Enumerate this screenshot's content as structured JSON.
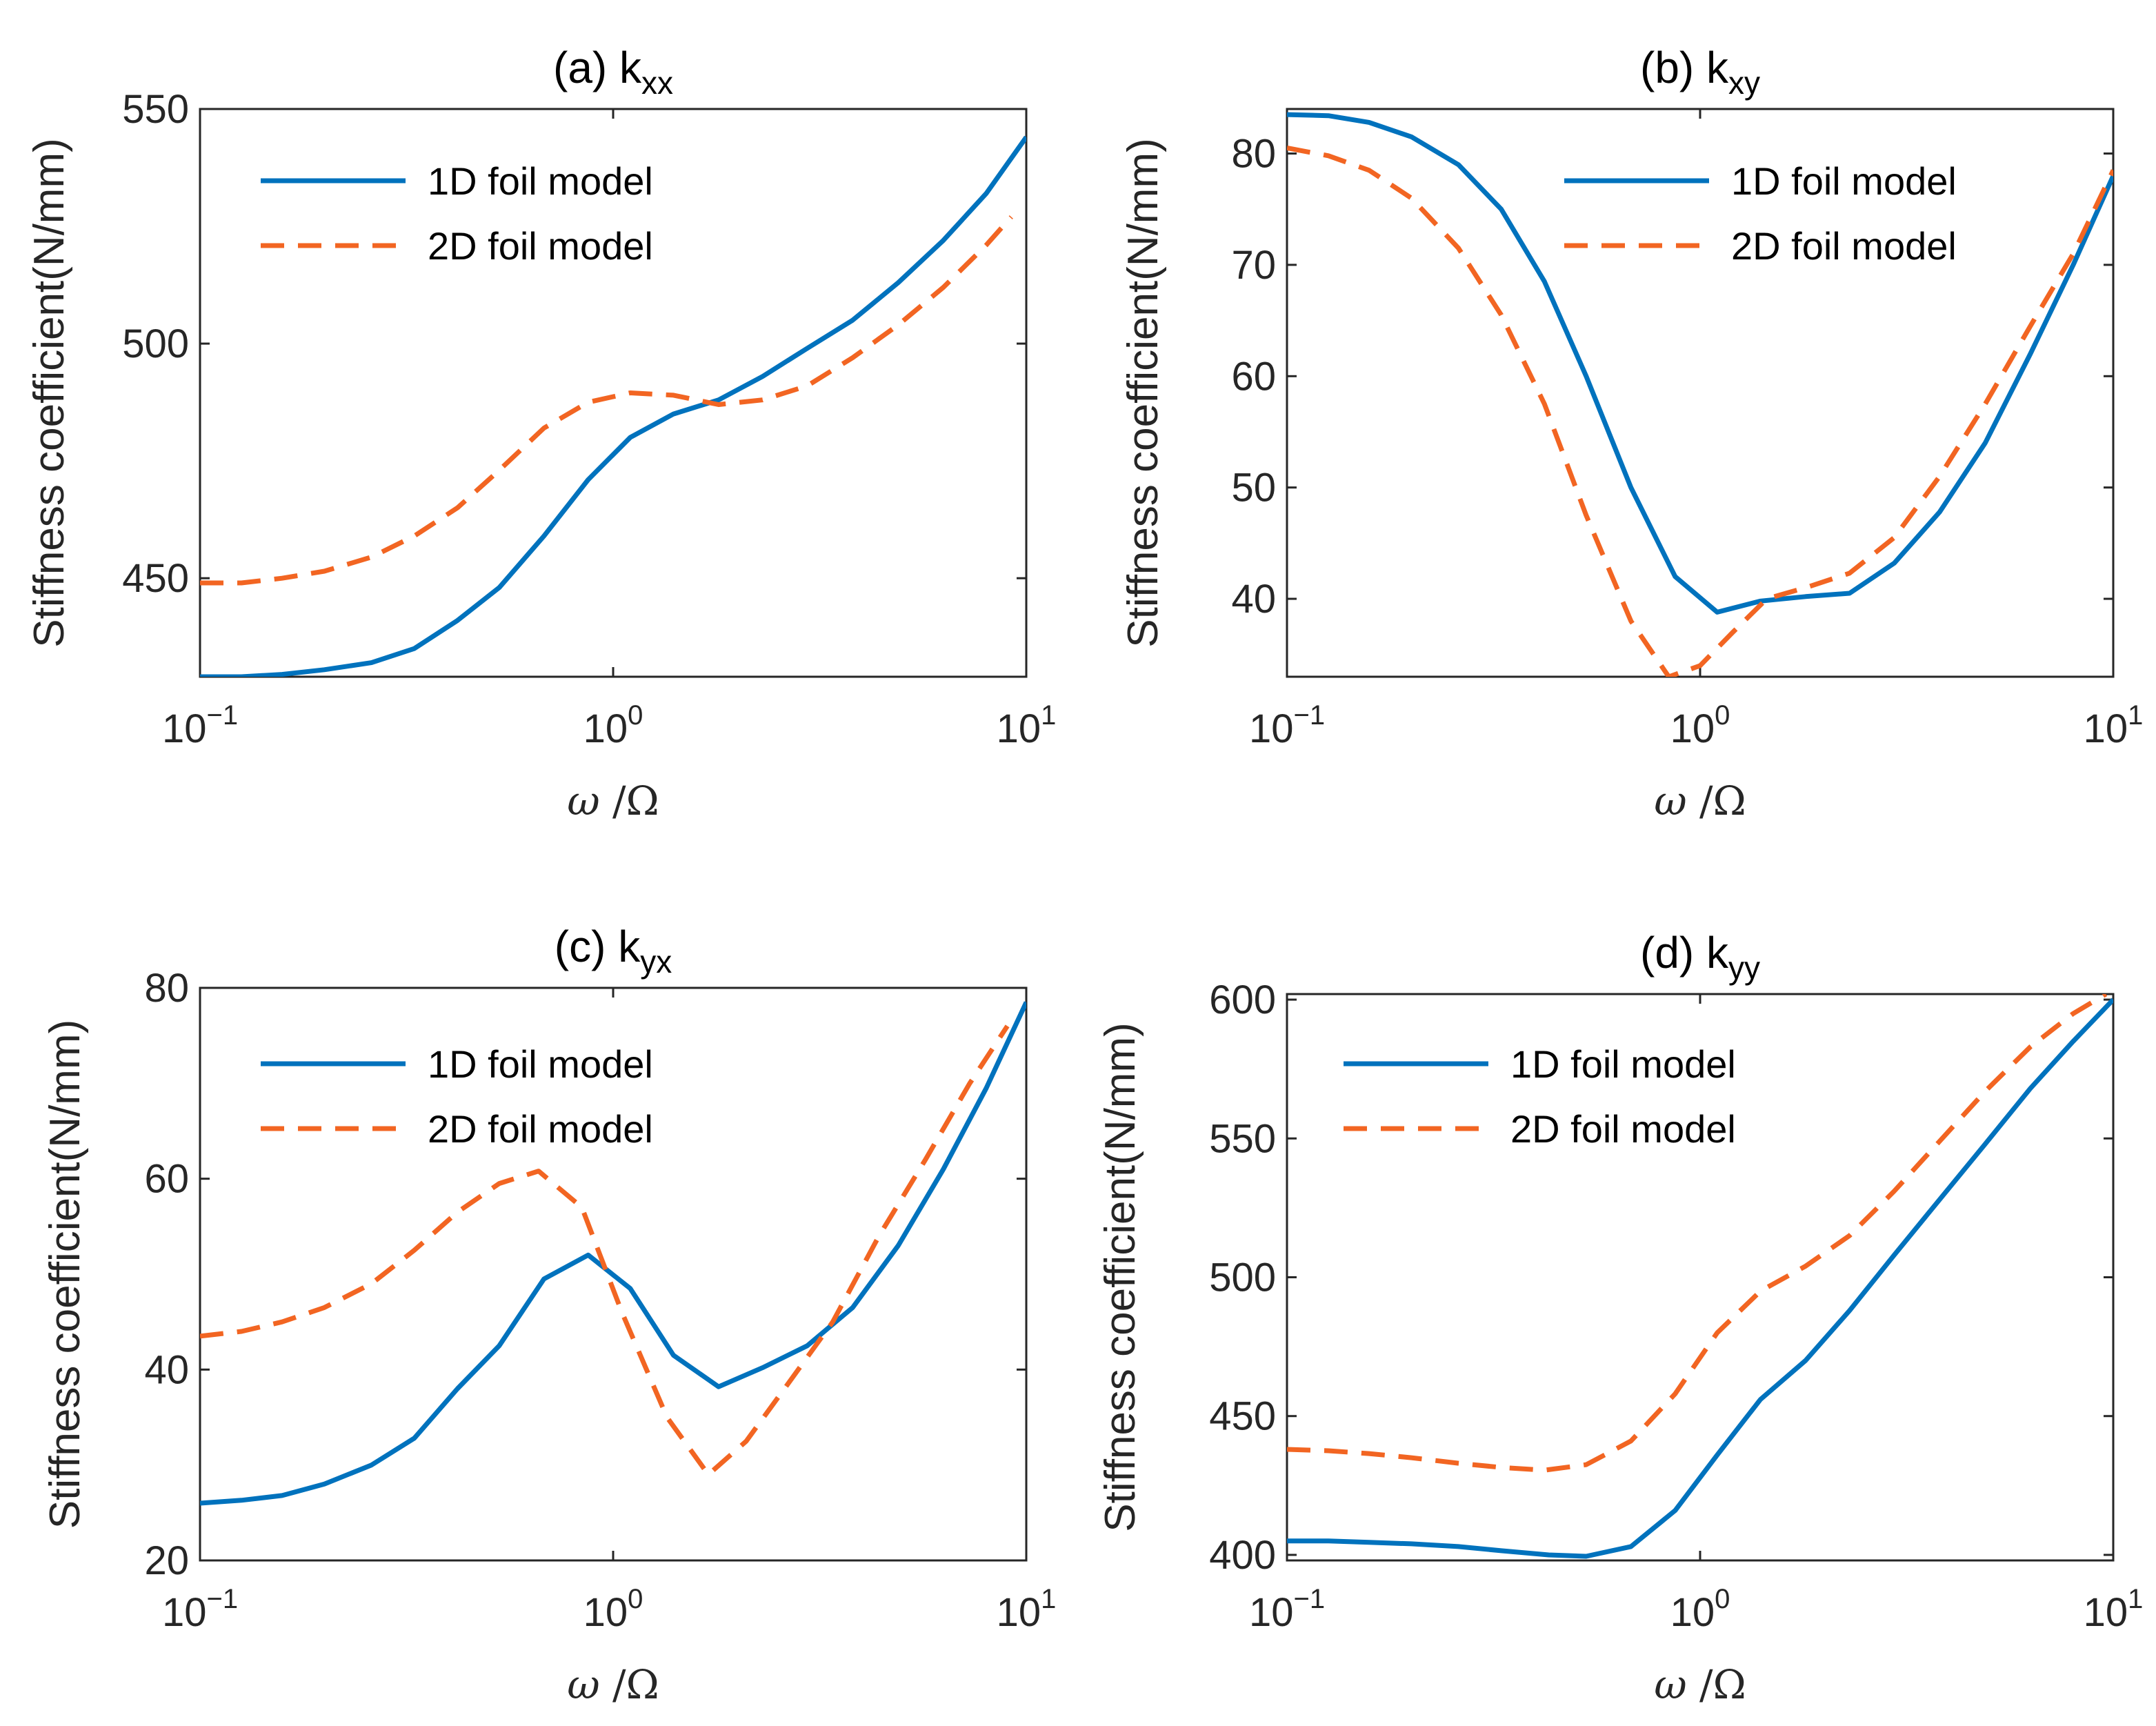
{
  "figure": {
    "ylabel": "Stiffness coefficient(N/mm)",
    "xlabel_omega": "ω",
    "xlabel_slash": "/",
    "xlabel_Omega": "Ω",
    "legend_1d": "1D foil model",
    "legend_2d": "2D foil model",
    "x_tick_base": "10",
    "x_tick_exponents": [
      "−1",
      "0",
      "1"
    ],
    "color_1d": "#0072BD",
    "color_2d": "#F26522"
  },
  "chart_data": [
    {
      "type": "line",
      "title_prefix": "(a) k",
      "title_sub": "xx",
      "xscale": "log",
      "xlim": [
        0.1,
        10
      ],
      "ylim": [
        429,
        550
      ],
      "yticks": [
        450,
        500,
        550
      ],
      "legend_position": "top-left",
      "xlabel": "ω /Ω",
      "ylabel": "Stiffness coefficient(N/mm)",
      "series": [
        {
          "name": "1D foil model",
          "style": "solid",
          "x": [
            0.1,
            0.126,
            0.158,
            0.2,
            0.26,
            0.33,
            0.42,
            0.53,
            0.68,
            0.87,
            1.1,
            1.4,
            1.8,
            2.3,
            2.95,
            3.8,
            4.9,
            6.3,
            8.0,
            10
          ],
          "values": [
            429,
            429,
            429.5,
            430.5,
            432,
            435,
            441,
            448,
            459,
            471,
            480,
            485,
            488,
            493,
            499,
            505,
            513,
            522,
            532,
            544
          ]
        },
        {
          "name": "2D foil model",
          "style": "dashed",
          "x": [
            0.1,
            0.126,
            0.158,
            0.2,
            0.26,
            0.33,
            0.42,
            0.53,
            0.68,
            0.87,
            1.1,
            1.4,
            1.8,
            2.3,
            2.95,
            3.8,
            4.9,
            6.3,
            8.0,
            9.2
          ],
          "values": [
            449,
            449,
            450,
            451.5,
            454.5,
            459,
            465,
            473,
            482,
            487.5,
            489.5,
            489,
            487,
            488,
            491,
            497,
            504,
            512,
            521,
            527
          ]
        }
      ]
    },
    {
      "type": "line",
      "title_prefix": "(b) k",
      "title_sub": "xy",
      "xscale": "log",
      "xlim": [
        0.1,
        10
      ],
      "ylim": [
        33,
        84
      ],
      "yticks": [
        40,
        50,
        60,
        70,
        80
      ],
      "legend_position": "top-right",
      "xlabel": "ω /Ω",
      "ylabel": "Stiffness coefficient(N/mm)",
      "series": [
        {
          "name": "1D foil model",
          "style": "solid",
          "x": [
            0.1,
            0.126,
            0.158,
            0.2,
            0.26,
            0.33,
            0.42,
            0.53,
            0.68,
            0.87,
            1.1,
            1.4,
            1.8,
            2.3,
            2.95,
            3.8,
            4.9,
            6.3,
            8.0,
            10
          ],
          "values": [
            83.5,
            83.4,
            82.8,
            81.5,
            79,
            75,
            68.5,
            60,
            50,
            42,
            38.8,
            39.8,
            40.2,
            40.5,
            43.2,
            47.8,
            54,
            62,
            70,
            78
          ]
        },
        {
          "name": "2D foil model",
          "style": "dashed",
          "x": [
            0.1,
            0.126,
            0.158,
            0.2,
            0.26,
            0.33,
            0.42,
            0.53,
            0.68,
            0.84,
            1.0,
            1.2,
            1.45,
            1.8,
            2.3,
            2.95,
            3.8,
            4.9,
            6.3,
            8.0,
            10
          ],
          "values": [
            80.5,
            79.8,
            78.5,
            76,
            71.5,
            65.5,
            57.5,
            47.5,
            38,
            33,
            34,
            37,
            40,
            41,
            42.3,
            45.5,
            51,
            57.5,
            64.5,
            71,
            78.5
          ]
        }
      ]
    },
    {
      "type": "line",
      "title_prefix": "(c) k",
      "title_sub": "yx",
      "xscale": "log",
      "xlim": [
        0.1,
        10
      ],
      "ylim": [
        20,
        80
      ],
      "yticks": [
        20,
        40,
        60,
        80
      ],
      "legend_position": "top-left",
      "xlabel": "ω /Ω",
      "ylabel": "Stiffness coefficient(N/mm)",
      "series": [
        {
          "name": "1D foil model",
          "style": "solid",
          "x": [
            0.1,
            0.126,
            0.158,
            0.2,
            0.26,
            0.33,
            0.42,
            0.53,
            0.68,
            0.87,
            1.1,
            1.4,
            1.8,
            2.3,
            2.95,
            3.8,
            4.9,
            6.3,
            8.0,
            10
          ],
          "values": [
            26,
            26.3,
            26.8,
            28,
            30,
            32.8,
            38,
            42.5,
            49.5,
            52,
            48.5,
            41.5,
            38.2,
            40.2,
            42.5,
            46.5,
            53,
            61,
            69.5,
            78.5
          ]
        },
        {
          "name": "2D foil model",
          "style": "dashed",
          "x": [
            0.1,
            0.126,
            0.158,
            0.2,
            0.26,
            0.33,
            0.42,
            0.53,
            0.66,
            0.84,
            1.05,
            1.35,
            1.7,
            2.1,
            2.7,
            3.4,
            4.4,
            5.7,
            7.3,
            9.0
          ],
          "values": [
            43.5,
            44,
            45,
            46.5,
            49,
            52.5,
            56.5,
            59.5,
            60.8,
            57,
            46,
            35,
            29,
            32.5,
            39,
            45,
            54,
            62,
            70,
            76
          ]
        }
      ]
    },
    {
      "type": "line",
      "title_prefix": "(d) k",
      "title_sub": "yy",
      "xscale": "log",
      "xlim": [
        0.1,
        10
      ],
      "ylim": [
        398,
        602
      ],
      "yticks": [
        400,
        450,
        500,
        550,
        600
      ],
      "legend_position": "top-left",
      "xlabel": "ω /Ω",
      "ylabel": "Stiffness coefficient(N/mm)",
      "series": [
        {
          "name": "1D foil model",
          "style": "solid",
          "x": [
            0.1,
            0.126,
            0.158,
            0.2,
            0.26,
            0.33,
            0.43,
            0.53,
            0.68,
            0.87,
            1.1,
            1.4,
            1.8,
            2.3,
            2.95,
            3.8,
            4.9,
            6.3,
            8.0,
            10
          ],
          "values": [
            405,
            405,
            404.5,
            404,
            403,
            401.5,
            400,
            399.5,
            403,
            416,
            436,
            456,
            470,
            488,
            508,
            528,
            548,
            568,
            585,
            600
          ]
        },
        {
          "name": "2D foil model",
          "style": "dashed",
          "x": [
            0.1,
            0.126,
            0.158,
            0.2,
            0.26,
            0.33,
            0.42,
            0.53,
            0.68,
            0.87,
            1.1,
            1.4,
            1.8,
            2.3,
            2.95,
            3.8,
            4.9,
            6.3,
            8.0,
            9.6
          ],
          "values": [
            438,
            437.5,
            436.5,
            435,
            433,
            431.5,
            430.5,
            432.5,
            441,
            458,
            480,
            495,
            504,
            515,
            531,
            549,
            567,
            583,
            595,
            602
          ]
        }
      ]
    }
  ]
}
